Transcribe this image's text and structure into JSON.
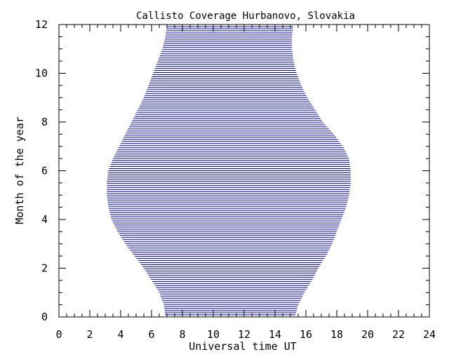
{
  "chart_data": {
    "type": "area",
    "title": "Callisto Coverage Hurbanovo, Slovakia",
    "xlabel": "Universal time UT",
    "ylabel": "Month of the year",
    "xlim": [
      0,
      24
    ],
    "ylim": [
      0,
      12
    ],
    "x_ticks": [
      "0",
      "2",
      "4",
      "6",
      "8",
      "10",
      "12",
      "14",
      "16",
      "18",
      "20",
      "22",
      "24"
    ],
    "y_ticks": [
      "0",
      "2",
      "4",
      "6",
      "8",
      "10",
      "12"
    ],
    "grid": false,
    "legend": "none",
    "fill_style": "horizontal-lines",
    "color": "#0000a0",
    "series": [
      {
        "month": [
          0,
          0.5,
          1,
          1.5,
          2,
          2.5,
          3,
          3.5,
          4,
          4.5,
          5,
          5.5,
          6,
          6.5,
          7,
          7.5,
          8,
          8.5,
          9,
          9.5,
          10,
          10.5,
          11,
          11.5,
          12
        ],
        "start_ut": [
          6.9,
          6.8,
          6.5,
          6.0,
          5.5,
          4.9,
          4.3,
          3.8,
          3.4,
          3.2,
          3.1,
          3.1,
          3.2,
          3.5,
          3.9,
          4.3,
          4.7,
          5.1,
          5.5,
          5.8,
          6.1,
          6.4,
          6.7,
          6.9,
          7.0
        ],
        "end_ut": [
          15.3,
          15.5,
          15.9,
          16.4,
          16.8,
          17.3,
          17.7,
          18.0,
          18.3,
          18.6,
          18.8,
          18.9,
          18.9,
          18.8,
          18.4,
          17.8,
          17.1,
          16.6,
          16.1,
          15.7,
          15.4,
          15.2,
          15.1,
          15.1,
          15.2
        ]
      }
    ]
  }
}
